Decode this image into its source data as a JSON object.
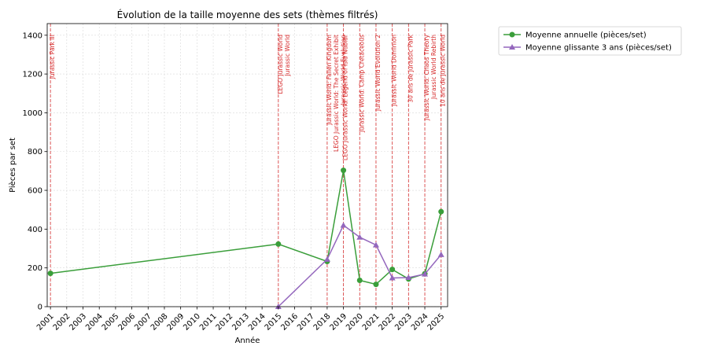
{
  "chart_data": {
    "type": "line",
    "title": "Évolution de la taille moyenne des sets (thèmes filtrés)",
    "xlabel": "Année",
    "ylabel": "Pièces par set",
    "xlim": [
      2000.8,
      2025.4
    ],
    "ylim": [
      0,
      1460
    ],
    "grid": true,
    "legend_position": "outside-right",
    "x_ticks": [
      2001,
      2002,
      2003,
      2004,
      2005,
      2006,
      2007,
      2008,
      2009,
      2010,
      2011,
      2012,
      2013,
      2014,
      2015,
      2016,
      2017,
      2018,
      2019,
      2020,
      2021,
      2022,
      2023,
      2024,
      2025
    ],
    "y_ticks": [
      0,
      200,
      400,
      600,
      800,
      1000,
      1200,
      1400
    ],
    "series": [
      {
        "name": "Moyenne annuelle (pièces/set)",
        "color": "#3a9e3a",
        "marker": "circle",
        "points": [
          [
            2001,
            172
          ],
          [
            2015,
            323
          ],
          [
            2018,
            233
          ],
          [
            2019,
            703
          ],
          [
            2020,
            136
          ],
          [
            2021,
            115
          ],
          [
            2022,
            192
          ],
          [
            2023,
            143
          ],
          [
            2024,
            170
          ],
          [
            2025,
            490
          ]
        ]
      },
      {
        "name": "Moyenne glissante 3 ans (pièces/set)",
        "color": "#9467bd",
        "marker": "triangle",
        "points": [
          [
            2015,
            0
          ],
          [
            2018,
            244
          ],
          [
            2019,
            420
          ],
          [
            2020,
            358
          ],
          [
            2021,
            318
          ],
          [
            2022,
            148
          ],
          [
            2023,
            150
          ],
          [
            2024,
            168
          ],
          [
            2025,
            268
          ]
        ]
      }
    ],
    "annotations": [
      {
        "x": 2001,
        "label": "Jurassic Park III"
      },
      {
        "x": 2015,
        "label": "LEGO Jurassic World"
      },
      {
        "x": 2015,
        "label": "Jurassic World"
      },
      {
        "x": 2018,
        "label": "Jurassic World: Fallen Kingdom"
      },
      {
        "x": 2018,
        "label": "LEGO Jurassic World: The Secret Exhibit"
      },
      {
        "x": 2018,
        "label": "Jurassic World Evolution"
      },
      {
        "x": 2019,
        "label": "LEGO Jurassic World: Legend of Isla Nublar"
      },
      {
        "x": 2020,
        "label": "Jurassic World: Camp Cretaceous"
      },
      {
        "x": 2021,
        "label": "Jurassic World Evolution 2"
      },
      {
        "x": 2022,
        "label": "Jurassic World Dominion"
      },
      {
        "x": 2023,
        "label": "30 ans de Jurassic Park"
      },
      {
        "x": 2024,
        "label": "Jurassic World: Chaos Theory"
      },
      {
        "x": 2024,
        "label": "Jurassic World Rebirth"
      },
      {
        "x": 2025,
        "label": "10 ans de Jurassic World"
      }
    ],
    "annotation_color": "#d62728"
  }
}
